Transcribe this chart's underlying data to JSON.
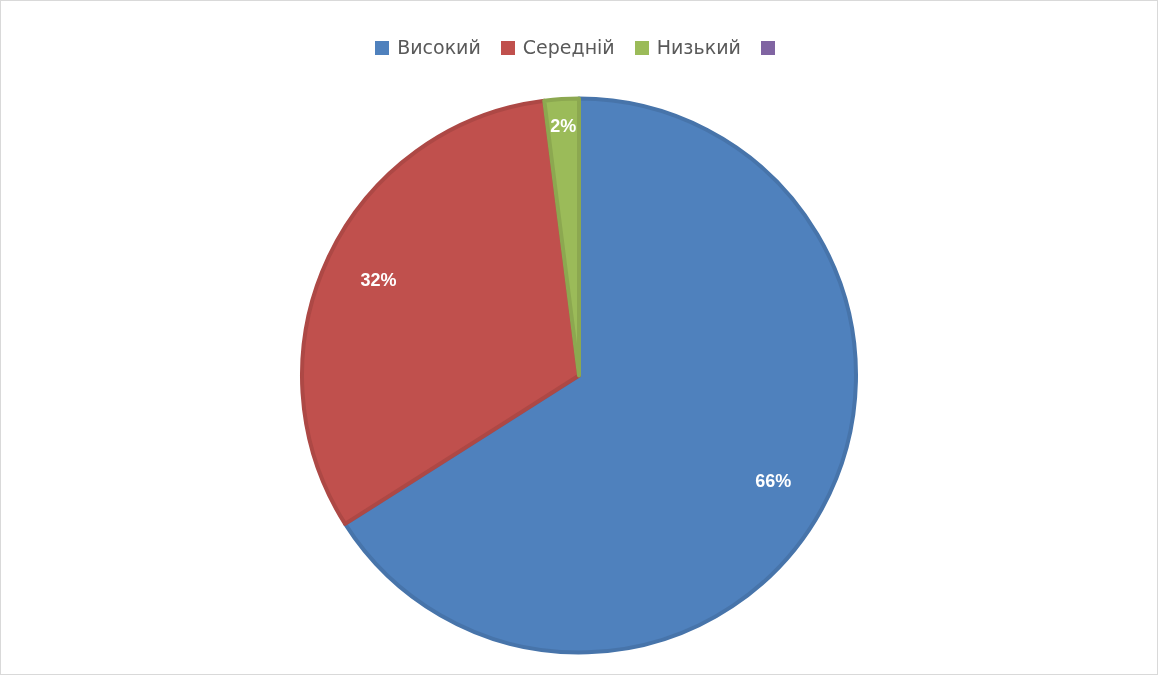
{
  "chart_data": {
    "type": "pie",
    "categories": [
      "Високий",
      "Середній",
      "Низький",
      null
    ],
    "values": [
      66,
      32,
      2,
      0
    ],
    "colors": [
      "#4f81bd",
      "#c0504d",
      "#9bbb59",
      "#8064a2"
    ],
    "value_labels": [
      "66%",
      "32%",
      "2%",
      null
    ],
    "legend": "top"
  }
}
